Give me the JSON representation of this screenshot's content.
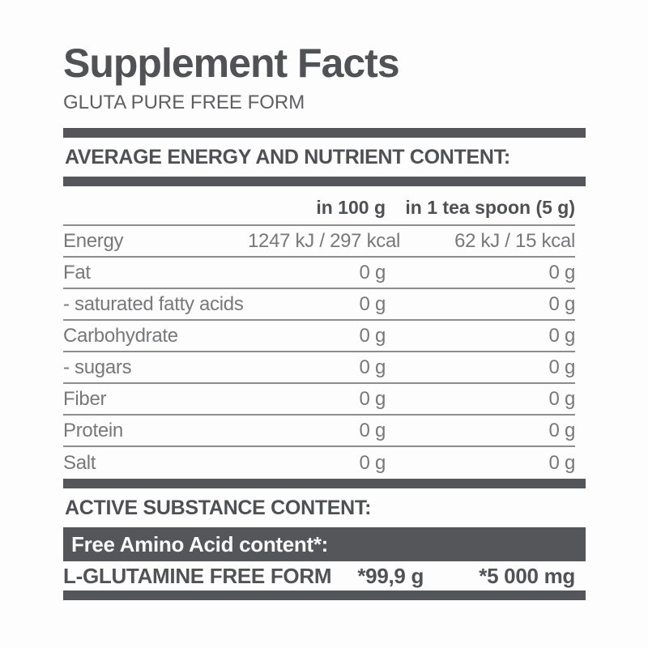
{
  "label": {
    "title": "Supplement Facts",
    "subtitle": "GLUTA PURE FREE FORM",
    "section1_heading": "AVERAGE ENERGY AND NUTRIENT CONTENT:",
    "table": {
      "columns": [
        "",
        "in 100 g",
        "in 1 tea spoon (5 g)"
      ],
      "rows": [
        {
          "name": "Energy",
          "per_100g": "1247 kJ / 297 kcal",
          "per_tea_spoon": "62 kJ / 15 kcal"
        },
        {
          "name": "Fat",
          "per_100g": "0 g",
          "per_tea_spoon": "0 g"
        },
        {
          "name": "- saturated fatty acids",
          "per_100g": "0 g",
          "per_tea_spoon": "0 g"
        },
        {
          "name": "Carbohydrate",
          "per_100g": "0 g",
          "per_tea_spoon": "0 g"
        },
        {
          "name": "- sugars",
          "per_100g": "0 g",
          "per_tea_spoon": "0 g"
        },
        {
          "name": "Fiber",
          "per_100g": "0 g",
          "per_tea_spoon": "0 g"
        },
        {
          "name": "Protein",
          "per_100g": "0 g",
          "per_tea_spoon": "0 g"
        },
        {
          "name": "Salt",
          "per_100g": "0 g",
          "per_tea_spoon": "0 g"
        }
      ]
    },
    "section2_heading": "ACTIVE SUBSTANCE CONTENT:",
    "amino_bar_heading": "Free Amino Acid content*:",
    "active_row": {
      "name": "L-GLUTAMINE FREE FORM",
      "per_100g": "*99,9 g",
      "per_tea_spoon": "*5 000 mg"
    },
    "colors": {
      "dark_bar": "#55565a",
      "dark_text": "#515255",
      "gray_text": "#77787b",
      "thin_line": "#8c8d8f",
      "background": "#fdfdfd",
      "amino_bar_text": "#fafafa"
    }
  }
}
